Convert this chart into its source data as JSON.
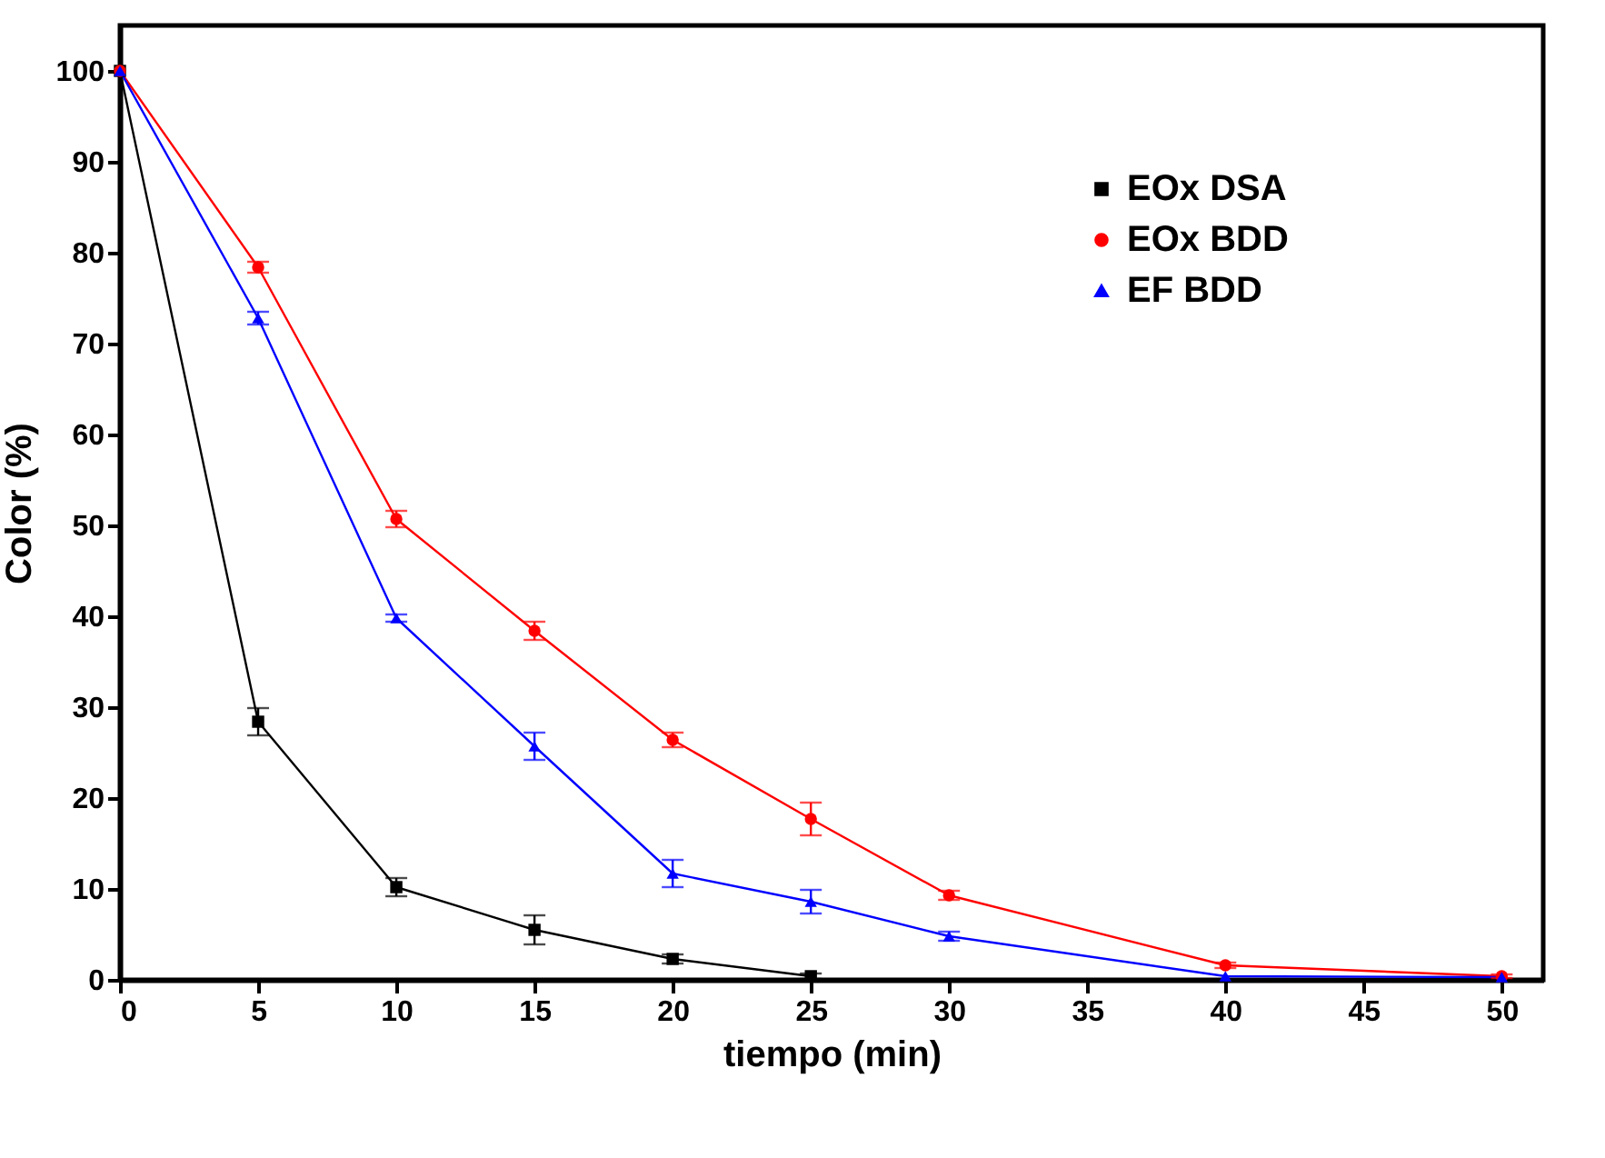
{
  "chart_data": {
    "type": "line",
    "xlabel": "tiempo (min)",
    "ylabel": "Color (%)",
    "x": [
      0,
      5,
      10,
      15,
      20,
      25,
      30,
      40,
      50
    ],
    "xlim": [
      0,
      51.5
    ],
    "ylim": [
      0,
      105
    ],
    "xticks": [
      0,
      5,
      10,
      15,
      20,
      25,
      30,
      35,
      40,
      45,
      50
    ],
    "yticks": [
      0,
      10,
      20,
      30,
      40,
      50,
      60,
      70,
      80,
      90,
      100
    ],
    "legend": "top right",
    "grid": false,
    "line_style": "solid",
    "series": [
      {
        "name": "EOx DSA",
        "color": "#000000",
        "marker": "square",
        "values": [
          100,
          28.4,
          10.2,
          5.5,
          2.3,
          0.4,
          null,
          null,
          null
        ],
        "errors": [
          null,
          1.5,
          1,
          1.6,
          0.5,
          0.3,
          null,
          null,
          null
        ]
      },
      {
        "name": "EOx BDD",
        "color": "#ff0000",
        "marker": "circle",
        "values": [
          100,
          78.4,
          50.7,
          38.4,
          26.4,
          17.7,
          9.3,
          1.6,
          0.4
        ],
        "errors": [
          null,
          0.6,
          0.9,
          1,
          0.8,
          1.8,
          0.5,
          0.3,
          0.2
        ]
      },
      {
        "name": "EF BDD",
        "color": "#0000ff",
        "marker": "triangle",
        "values": [
          100,
          72.8,
          39.8,
          25.7,
          11.7,
          8.6,
          4.8,
          0.4,
          0.3
        ],
        "errors": [
          null,
          0.7,
          0.4,
          1.5,
          1.5,
          1.3,
          0.5,
          null,
          null
        ]
      }
    ]
  }
}
